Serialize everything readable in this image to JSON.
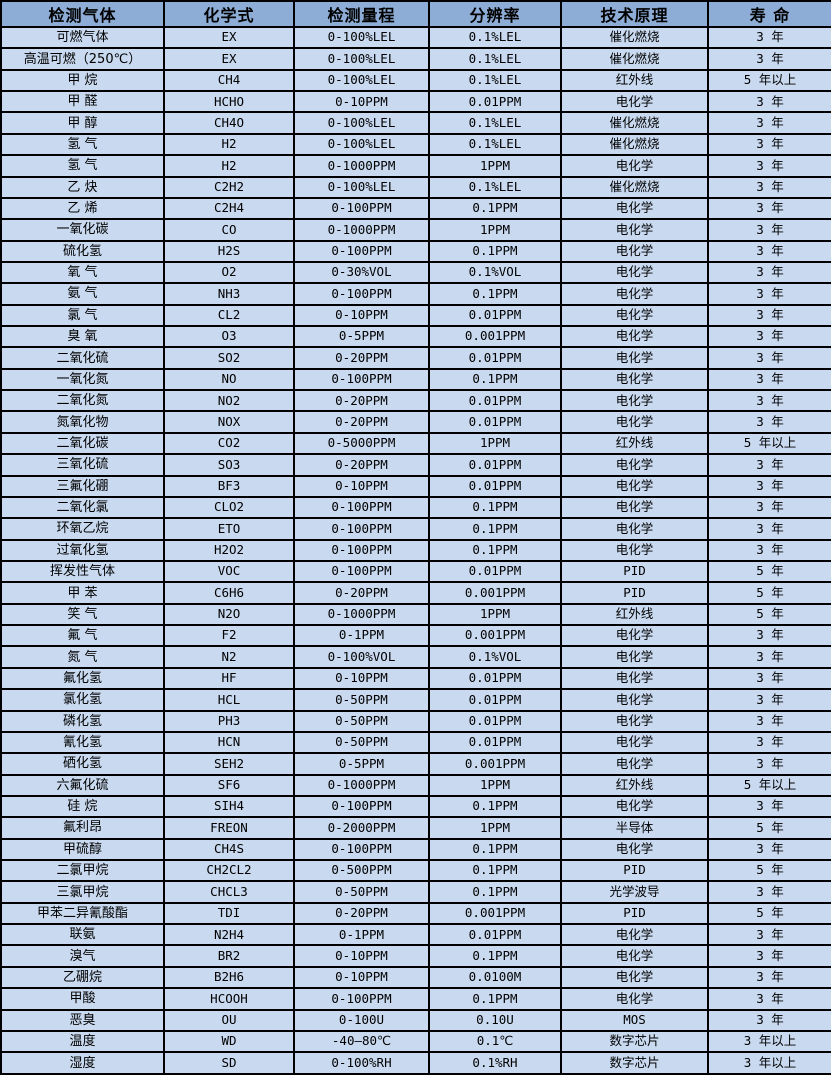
{
  "table": {
    "columns": [
      "检测气体",
      "化学式",
      "检测量程",
      "分辨率",
      "技术原理",
      "寿 命"
    ],
    "rows": [
      [
        "可燃气体",
        "EX",
        "0-100%LEL",
        "0.1%LEL",
        "催化燃烧",
        "3 年"
      ],
      [
        "高温可燃（250℃）",
        "EX",
        "0-100%LEL",
        "0.1%LEL",
        "催化燃烧",
        "3 年"
      ],
      [
        "甲 烷",
        "CH4",
        "0-100%LEL",
        "0.1%LEL",
        "红外线",
        "5 年以上"
      ],
      [
        "甲 醛",
        "HCHO",
        "0-10PPM",
        "0.01PPM",
        "电化学",
        "3 年"
      ],
      [
        "甲 醇",
        "CH4O",
        "0-100%LEL",
        "0.1%LEL",
        "催化燃烧",
        "3 年"
      ],
      [
        "氢 气",
        "H2",
        "0-100%LEL",
        "0.1%LEL",
        "催化燃烧",
        "3 年"
      ],
      [
        "氢 气",
        "H2",
        "0-1000PPM",
        "1PPM",
        "电化学",
        "3 年"
      ],
      [
        "乙 炔",
        "C2H2",
        "0-100%LEL",
        "0.1%LEL",
        "催化燃烧",
        "3 年"
      ],
      [
        "乙 烯",
        "C2H4",
        "0-100PPM",
        "0.1PPM",
        "电化学",
        "3 年"
      ],
      [
        "一氧化碳",
        "CO",
        "0-1000PPM",
        "1PPM",
        "电化学",
        "3 年"
      ],
      [
        "硫化氢",
        "H2S",
        "0-100PPM",
        "0.1PPM",
        "电化学",
        "3 年"
      ],
      [
        "氧 气",
        "O2",
        "0-30%VOL",
        "0.1%VOL",
        "电化学",
        "3 年"
      ],
      [
        "氨 气",
        "NH3",
        "0-100PPM",
        "0.1PPM",
        "电化学",
        "3 年"
      ],
      [
        "氯 气",
        "CL2",
        "0-10PPM",
        "0.01PPM",
        "电化学",
        "3 年"
      ],
      [
        "臭 氧",
        "O3",
        "0-5PPM",
        "0.001PPM",
        "电化学",
        "3 年"
      ],
      [
        "二氧化硫",
        "SO2",
        "0-20PPM",
        "0.01PPM",
        "电化学",
        "3 年"
      ],
      [
        "一氧化氮",
        "NO",
        "0-100PPM",
        "0.1PPM",
        "电化学",
        "3 年"
      ],
      [
        "二氧化氮",
        "NO2",
        "0-20PPM",
        "0.01PPM",
        "电化学",
        "3 年"
      ],
      [
        "氮氧化物",
        "NOX",
        "0-20PPM",
        "0.01PPM",
        "电化学",
        "3 年"
      ],
      [
        "二氧化碳",
        "CO2",
        "0-5000PPM",
        "1PPM",
        "红外线",
        "5 年以上"
      ],
      [
        "三氧化硫",
        "SO3",
        "0-20PPM",
        "0.01PPM",
        "电化学",
        "3 年"
      ],
      [
        "三氟化硼",
        "BF3",
        "0-10PPM",
        "0.01PPM",
        "电化学",
        "3 年"
      ],
      [
        "二氧化氯",
        "CLO2",
        "0-100PPM",
        "0.1PPM",
        "电化学",
        "3 年"
      ],
      [
        "环氧乙烷",
        "ETO",
        "0-100PPM",
        "0.1PPM",
        "电化学",
        "3 年"
      ],
      [
        "过氧化氢",
        "H2O2",
        "0-100PPM",
        "0.1PPM",
        "电化学",
        "3 年"
      ],
      [
        "挥发性气体",
        "VOC",
        "0-100PPM",
        "0.01PPM",
        "PID",
        "5 年"
      ],
      [
        "甲 苯",
        "C6H6",
        "0-20PPM",
        "0.001PPM",
        "PID",
        "5 年"
      ],
      [
        "笑 气",
        "N2O",
        "0-1000PPM",
        "1PPM",
        "红外线",
        "5 年"
      ],
      [
        "氟 气",
        "F2",
        "0-1PPM",
        "0.001PPM",
        "电化学",
        "3 年"
      ],
      [
        "氮 气",
        "N2",
        "0-100%VOL",
        "0.1%VOL",
        "电化学",
        "3 年"
      ],
      [
        "氟化氢",
        "HF",
        "0-10PPM",
        "0.01PPM",
        "电化学",
        "3 年"
      ],
      [
        "氯化氢",
        "HCL",
        "0-50PPM",
        "0.01PPM",
        "电化学",
        "3 年"
      ],
      [
        "磷化氢",
        "PH3",
        "0-50PPM",
        "0.01PPM",
        "电化学",
        "3 年"
      ],
      [
        "氰化氢",
        "HCN",
        "0-50PPM",
        "0.01PPM",
        "电化学",
        "3 年"
      ],
      [
        "硒化氢",
        "SEH2",
        "0-5PPM",
        "0.001PPM",
        "电化学",
        "3 年"
      ],
      [
        "六氟化硫",
        "SF6",
        "0-1000PPM",
        "1PPM",
        "红外线",
        "5 年以上"
      ],
      [
        "硅 烷",
        "SIH4",
        "0-100PPM",
        "0.1PPM",
        "电化学",
        "3 年"
      ],
      [
        "氟利昂",
        "FREON",
        "0-2000PPM",
        "1PPM",
        "半导体",
        "5 年"
      ],
      [
        "甲硫醇",
        "CH4S",
        "0-100PPM",
        "0.1PPM",
        "电化学",
        "3 年"
      ],
      [
        "二氯甲烷",
        "CH2CL2",
        "0-500PPM",
        "0.1PPM",
        "PID",
        "5 年"
      ],
      [
        "三氯甲烷",
        "CHCL3",
        "0-50PPM",
        "0.1PPM",
        "光学波导",
        "3 年"
      ],
      [
        "甲苯二异氰酸酯",
        "TDI",
        "0-20PPM",
        "0.001PPM",
        "PID",
        "5 年"
      ],
      [
        "联氨",
        "N2H4",
        "0-1PPM",
        "0.01PPM",
        "电化学",
        "3 年"
      ],
      [
        "溴气",
        "BR2",
        "0-10PPM",
        "0.1PPM",
        "电化学",
        "3 年"
      ],
      [
        "乙硼烷",
        "B2H6",
        "0-10PPM",
        "0.0100M",
        "电化学",
        "3 年"
      ],
      [
        "甲酸",
        "HCOOH",
        "0-100PPM",
        "0.1PPM",
        "电化学",
        "3 年"
      ],
      [
        "恶臭",
        "OU",
        "0-100U",
        "0.10U",
        "MOS",
        "3 年"
      ],
      [
        "温度",
        "WD",
        "-40—80℃",
        "0.1℃",
        "数字芯片",
        "3 年以上"
      ],
      [
        "湿度",
        "SD",
        "0-100%RH",
        "0.1%RH",
        "数字芯片",
        "3 年以上"
      ]
    ]
  },
  "colors": {
    "header_bg": "#8DADD6",
    "row_bg": "#C9DAF0",
    "border": "#000000",
    "text": "#000000"
  }
}
